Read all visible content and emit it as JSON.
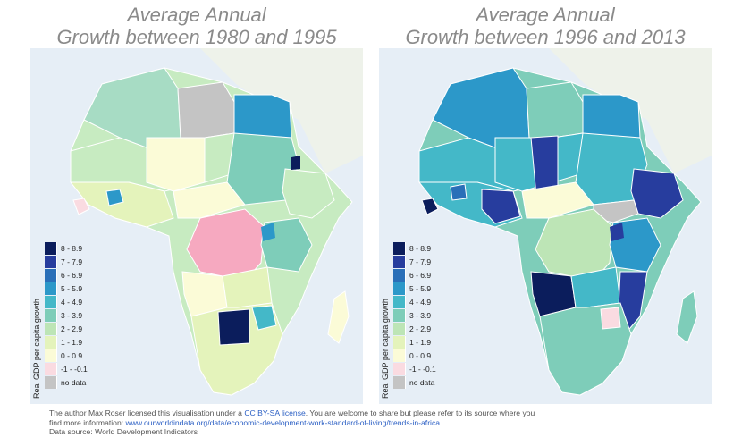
{
  "maps": [
    {
      "title_line1": "Average Annual",
      "title_line2": "Growth between 1980 and 1995"
    },
    {
      "title_line1": "Average Annual",
      "title_line2": "Growth between 1996 and 2013"
    }
  ],
  "legend": {
    "ylabel": "Real GDP per capita growth",
    "items": [
      {
        "label": "8 - 8.9",
        "color": "#0b1d5c"
      },
      {
        "label": "7 - 7.9",
        "color": "#273d9e"
      },
      {
        "label": "6 - 6.9",
        "color": "#2a6fb8"
      },
      {
        "label": "5 - 5.9",
        "color": "#2c98c9"
      },
      {
        "label": "4 - 4.9",
        "color": "#44b8c8"
      },
      {
        "label": "3 - 3.9",
        "color": "#7ecdb9"
      },
      {
        "label": "2 - 2.9",
        "color": "#bde5b6"
      },
      {
        "label": "1 - 1.9",
        "color": "#e4f3bb"
      },
      {
        "label": "0 - 0.9",
        "color": "#fbfbd7"
      },
      {
        "label": "-1 - -0.1",
        "color": "#fadbe1"
      },
      {
        "label": "no data",
        "color": "#c4c4c4"
      }
    ]
  },
  "footer": {
    "line1_pre": "The author Max Roser licensed this visualisation under a ",
    "license": "CC BY-SA license",
    "line1_post": ". You are welcome to share but please refer to its source where you",
    "line2_pre": "find more information: ",
    "url": "www.ourworldindata.org/data/economic-development-work-standard-of-living/trends-in-africa",
    "line3": "Data source: World Development Indicators"
  },
  "colors": {
    "ocean": "#e6eef6",
    "land_bg": "#f3f6f2",
    "border": "#ffffff",
    "title": "#8a8a8a"
  }
}
